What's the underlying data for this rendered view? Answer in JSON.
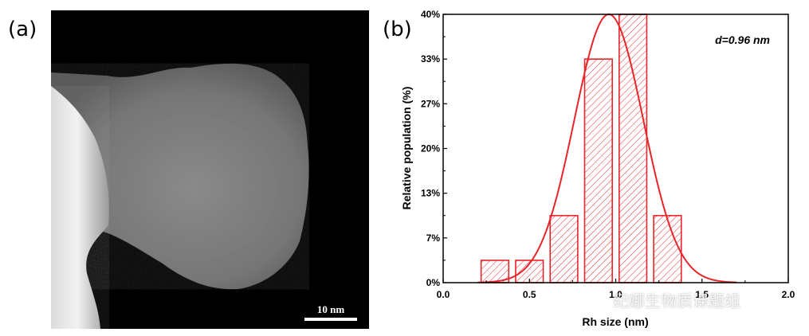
{
  "panels": {
    "a_label": "(a)",
    "b_label": "(b)"
  },
  "tem_image": {
    "scale_bar_label": "10 nm"
  },
  "chart_data": {
    "type": "bar",
    "title": "",
    "xlabel": "Rh size (nm)",
    "ylabel": "Relative population (%)",
    "xlim": [
      0.0,
      2.0
    ],
    "ylim": [
      0,
      40
    ],
    "x_ticks": [
      0.0,
      0.5,
      1.0,
      1.5,
      2.0
    ],
    "x_tick_labels": [
      "0.0",
      "0.5",
      "1.0",
      "1.5",
      "2.0"
    ],
    "y_ticks": [
      0,
      6.67,
      13.33,
      20,
      26.67,
      33.33,
      40
    ],
    "y_tick_labels": [
      "0%",
      "7%",
      "13%",
      "20%",
      "27%",
      "33%",
      "40%"
    ],
    "bins": [
      {
        "x_start": 0.22,
        "x_end": 0.38,
        "value": 3.33
      },
      {
        "x_start": 0.42,
        "x_end": 0.58,
        "value": 3.33
      },
      {
        "x_start": 0.62,
        "x_end": 0.78,
        "value": 10.0
      },
      {
        "x_start": 0.82,
        "x_end": 0.98,
        "value": 33.33
      },
      {
        "x_start": 1.02,
        "x_end": 1.18,
        "value": 40.0
      },
      {
        "x_start": 1.22,
        "x_end": 1.38,
        "value": 10.0
      }
    ],
    "fit": {
      "type": "gaussian",
      "center": 0.96,
      "peak": 40.0,
      "sigma": 0.2
    },
    "annotation": "d=0.96 nm",
    "bar_color": "#e8252a",
    "fit_color": "#e8252a"
  },
  "watermark": {
    "text": "纪娜生物质课题组"
  }
}
